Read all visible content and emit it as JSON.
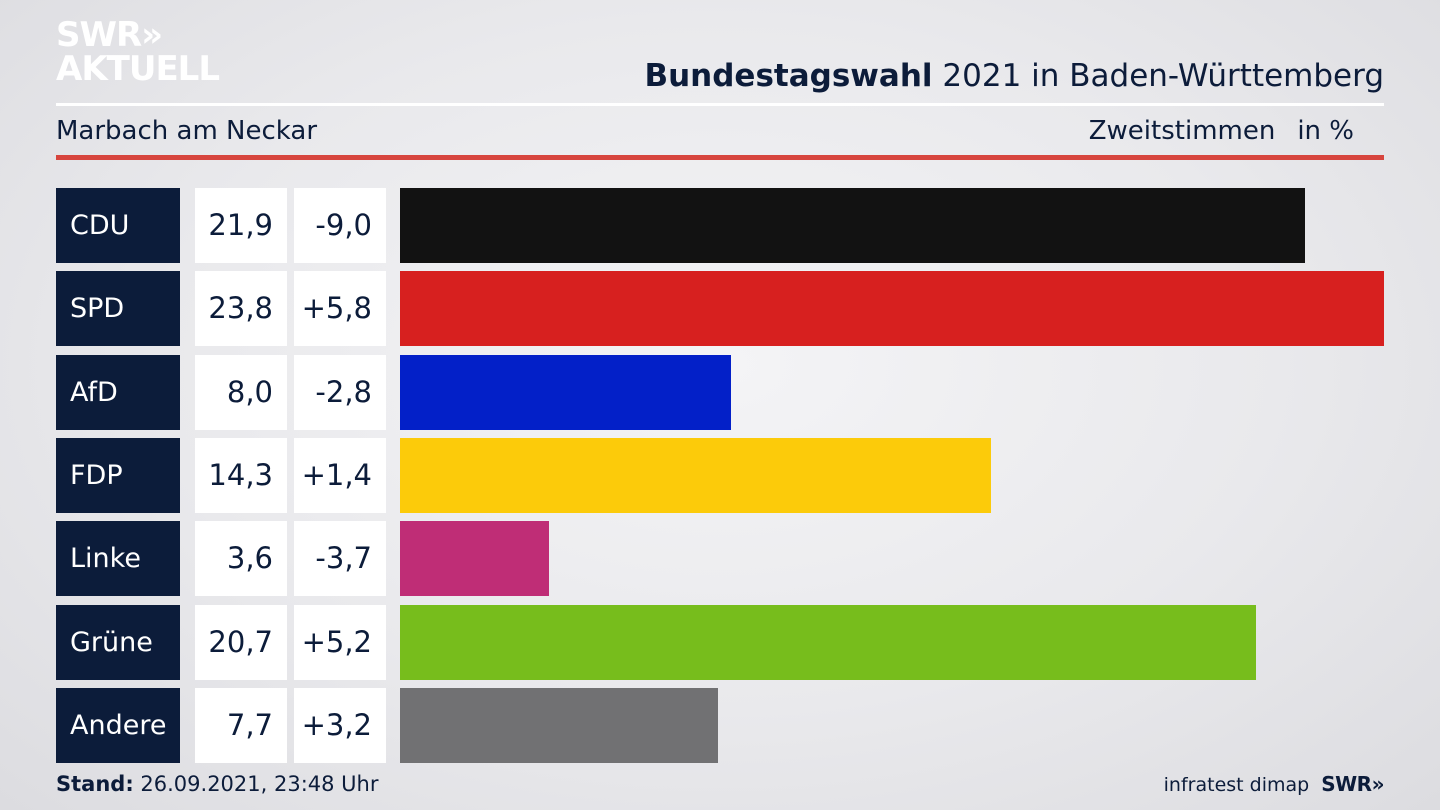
{
  "logo": {
    "line1": "SWR»",
    "line2": "AKTUELL"
  },
  "header": {
    "title_bold": "Bundestagswahl",
    "title_rest": " 2021 in Baden-Württemberg",
    "subtitle": "Marbach am Neckar",
    "measure": "Zweitstimmen",
    "unit": "in %"
  },
  "footer": {
    "stand_label": "Stand:",
    "stand_value": " 26.09.2021, 23:48 Uhr",
    "source": "infratest dimap",
    "brand": "SWR»"
  },
  "colors": {
    "navy": "#0c1c3a",
    "accent_red": "#d7453e"
  },
  "chart_data": {
    "type": "bar",
    "orientation": "horizontal",
    "categories": [
      "CDU",
      "SPD",
      "AfD",
      "FDP",
      "Linke",
      "Grüne",
      "Andere"
    ],
    "values": [
      21.9,
      23.8,
      8.0,
      14.3,
      3.6,
      20.7,
      7.7
    ],
    "value_labels": [
      "21,9",
      "23,8",
      "8,0",
      "14,3",
      "3,6",
      "20,7",
      "7,7"
    ],
    "changes": [
      -9.0,
      5.8,
      -2.8,
      1.4,
      -3.7,
      5.2,
      3.2
    ],
    "change_labels": [
      "-9,0",
      "+5,8",
      "-2,8",
      "+1,4",
      "-3,7",
      "+5,2",
      "+3,2"
    ],
    "colors": [
      "#121212",
      "#d7201f",
      "#0320c8",
      "#fccb0a",
      "#bf2d76",
      "#77bd1c",
      "#717173"
    ],
    "xlim": [
      0,
      23.8
    ]
  }
}
